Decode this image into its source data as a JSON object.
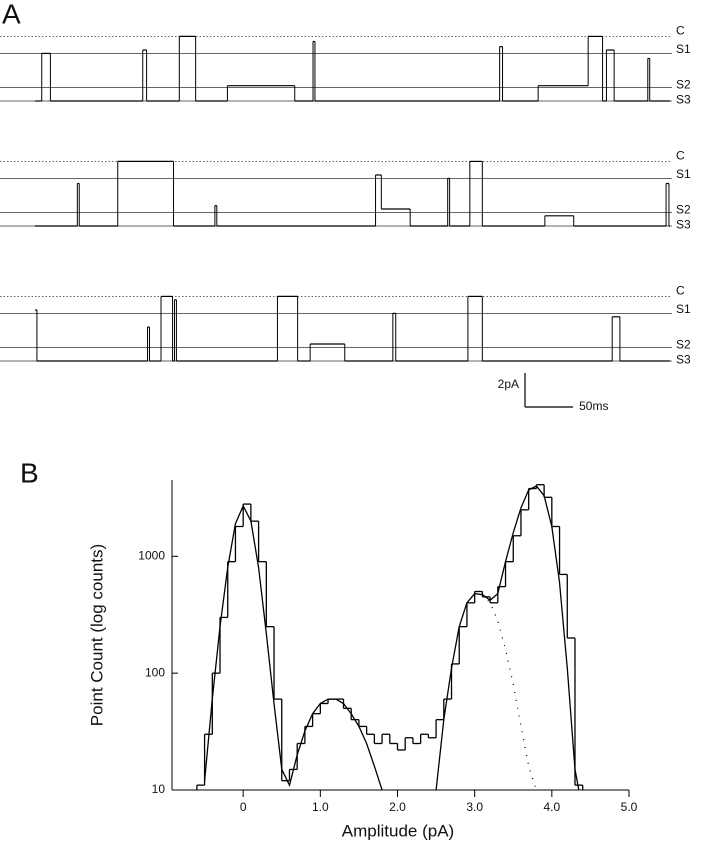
{
  "chart_data": [
    {
      "type": "trace",
      "panel": "A",
      "xlim": [
        0,
        660
      ],
      "levels": [
        {
          "name": "C",
          "value": 3.8,
          "style": "dotted"
        },
        {
          "name": "S1",
          "value": 2.8,
          "style": "solid"
        },
        {
          "name": "S2",
          "value": 0.8,
          "style": "solid"
        },
        {
          "name": "S3",
          "value": 0,
          "style": "solid"
        }
      ],
      "traces": [
        {
          "x": [
            0,
            7,
            16,
            112,
            116,
            150,
            167,
            200,
            270,
            289,
            291,
            483,
            486,
            523,
            575,
            590,
            594,
            602,
            637,
            639
          ],
          "values": [
            0,
            2.8,
            0,
            3.0,
            0,
            3.8,
            0,
            0.9,
            0,
            3.5,
            0,
            3.2,
            0,
            0.9,
            3.8,
            0,
            3.0,
            0,
            2.5,
            0
          ]
        },
        {
          "x": [
            0,
            44,
            46,
            86,
            144,
            187,
            189,
            354,
            360,
            390,
            429,
            431,
            452,
            465,
            530,
            560,
            656,
            659
          ],
          "values": [
            0,
            2.5,
            0,
            3.8,
            0,
            1.2,
            0,
            3.0,
            1.0,
            0,
            2.8,
            0,
            3.8,
            0,
            0.6,
            0,
            2.5,
            0
          ]
        },
        {
          "x": [
            0,
            2,
            117,
            119,
            131,
            143,
            145,
            147,
            252,
            273,
            286,
            322,
            372,
            375,
            450,
            465,
            600,
            608
          ],
          "values": [
            3.0,
            0,
            2.0,
            0,
            3.8,
            0,
            3.6,
            0,
            3.8,
            0,
            1.0,
            0,
            2.8,
            0,
            3.8,
            0,
            2.6,
            0
          ]
        }
      ],
      "scale_bar": {
        "amplitude": 2,
        "amplitude_label": "2pA",
        "time": 50,
        "time_label": "50ms"
      }
    },
    {
      "type": "histogram",
      "panel": "B",
      "x_label": "Amplitude (pA)",
      "y_label": "Point Count (log counts)",
      "log_y": true,
      "xlim": [
        -1,
        5
      ],
      "ylim": [
        10,
        4500
      ],
      "xticks": [
        {
          "value": 0,
          "label": "0"
        },
        {
          "value": 1,
          "label": "1.0"
        },
        {
          "value": 2,
          "label": "2.0"
        },
        {
          "value": 3,
          "label": "3.0"
        },
        {
          "value": 4,
          "label": "4.0"
        },
        {
          "value": 5,
          "label": "5.0"
        }
      ],
      "yticks": [
        10,
        100,
        1000
      ],
      "bins": [
        -0.6,
        -0.5,
        -0.4,
        -0.3,
        -0.2,
        -0.1,
        0,
        0.1,
        0.2,
        0.3,
        0.4,
        0.5,
        0.6,
        0.7,
        0.8,
        0.9,
        1.0,
        1.1,
        1.2,
        1.3,
        1.4,
        1.5,
        1.6,
        1.7,
        1.8,
        1.9,
        2.0,
        2.1,
        2.2,
        2.3,
        2.4,
        2.5,
        2.6,
        2.7,
        2.8,
        2.9,
        3.0,
        3.1,
        3.2,
        3.3,
        3.4,
        3.5,
        3.6,
        3.7,
        3.8,
        3.9,
        4.0,
        4.1,
        4.2,
        4.3,
        4.4
      ],
      "counts": [
        11,
        30,
        100,
        300,
        900,
        1800,
        2800,
        2000,
        900,
        250,
        60,
        12,
        15,
        25,
        35,
        45,
        55,
        60,
        60,
        50,
        40,
        35,
        30,
        25,
        30,
        25,
        22,
        28,
        25,
        30,
        28,
        40,
        60,
        120,
        250,
        400,
        500,
        450,
        400,
        550,
        900,
        1500,
        2500,
        3800,
        4100,
        3200,
        1800,
        700,
        200,
        11
      ],
      "fits": [
        {
          "style": "solid",
          "x": [
            -0.5,
            -0.4,
            -0.3,
            -0.2,
            -0.1,
            0,
            0.1,
            0.2,
            0.3,
            0.4,
            0.5,
            0.6,
            0.7,
            0.8,
            0.9,
            1.0,
            1.1,
            1.2,
            1.3,
            1.4,
            1.5,
            1.6,
            1.7,
            1.8
          ],
          "values": [
            12,
            60,
            250,
            800,
            1900,
            2700,
            2000,
            800,
            220,
            55,
            15,
            11,
            20,
            32,
            45,
            55,
            60,
            60,
            55,
            45,
            35,
            25,
            16,
            10
          ]
        },
        {
          "style": "solid",
          "x": [
            2.5,
            2.6,
            2.7,
            2.8,
            2.9,
            3.0,
            3.1,
            3.2,
            3.3,
            3.4,
            3.5,
            3.6,
            3.7,
            3.8,
            3.9,
            4.0,
            4.1,
            4.2,
            4.3,
            4.35
          ],
          "values": [
            10,
            40,
            110,
            250,
            400,
            480,
            470,
            420,
            480,
            900,
            1600,
            2600,
            3700,
            4000,
            3300,
            1800,
            600,
            110,
            15,
            10
          ]
        },
        {
          "style": "dotted",
          "x": [
            3.1,
            3.2,
            3.3,
            3.4,
            3.5,
            3.6,
            3.7,
            3.8
          ],
          "values": [
            470,
            400,
            280,
            160,
            80,
            35,
            16,
            10
          ]
        }
      ]
    }
  ]
}
